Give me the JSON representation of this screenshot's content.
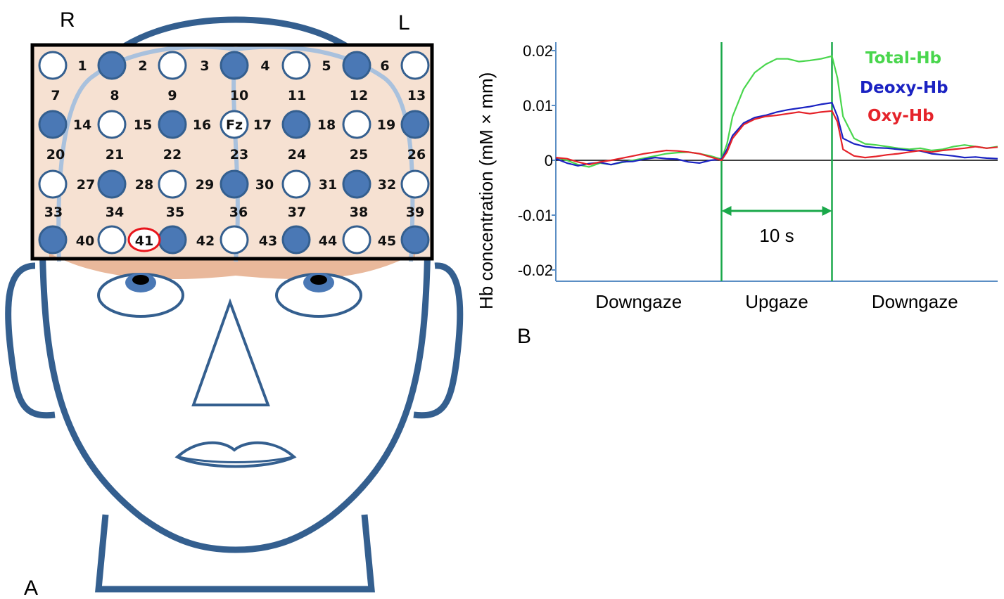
{
  "panels": {
    "a": "A",
    "b": "B"
  },
  "head": {
    "right_label": "R",
    "left_label": "L",
    "colors": {
      "outline": "#345f8f",
      "filled_optode": "#4a78b5",
      "probe_area": "#f6e1d2",
      "probe_lower": "#e9b89b",
      "highlight": "#e8141b"
    },
    "highlighted_channel": "41",
    "optode_grid": [
      [
        false,
        true,
        false,
        true,
        false,
        true,
        false
      ],
      [
        true,
        false,
        true,
        "Fz",
        true,
        false,
        true
      ],
      [
        false,
        true,
        false,
        true,
        false,
        true,
        false
      ],
      [
        true,
        false,
        true,
        false,
        true,
        false,
        true
      ]
    ],
    "channels": [
      "1",
      "2",
      "3",
      "4",
      "5",
      "6",
      "7",
      "8",
      "9",
      "10",
      "11",
      "12",
      "13",
      "14",
      "15",
      "16",
      "17",
      "18",
      "19",
      "20",
      "21",
      "22",
      "23",
      "24",
      "25",
      "26",
      "27",
      "28",
      "29",
      "30",
      "31",
      "32",
      "33",
      "34",
      "35",
      "36",
      "37",
      "38",
      "39",
      "40",
      "41",
      "42",
      "43",
      "44",
      "45"
    ]
  },
  "chart_data": {
    "type": "line",
    "title": "",
    "xlabel": "",
    "ylabel": "Hb concentration (mM × mm)",
    "ylim": [
      -0.02,
      0.02
    ],
    "yticks": [
      {
        "value": 0.02,
        "label": "0.02"
      },
      {
        "value": 0.01,
        "label": "0.01"
      },
      {
        "value": 0,
        "label": "0"
      },
      {
        "value": -0.01,
        "label": "-0.01"
      },
      {
        "value": -0.02,
        "label": "-0.02"
      }
    ],
    "xlim": [
      0,
      40
    ],
    "phases": [
      {
        "label": "Downgaze",
        "start": 0,
        "end": 15
      },
      {
        "label": "Upgaze",
        "start": 15,
        "end": 25
      },
      {
        "label": "Downgaze",
        "start": 25,
        "end": 40
      }
    ],
    "marker_lines_x": [
      15,
      25
    ],
    "duration_annotation": {
      "label": "10 s",
      "from": 15,
      "to": 25
    },
    "legend": [
      "Total-Hb",
      "Deoxy-Hb",
      "Oxy-Hb"
    ],
    "series": [
      {
        "name": "Total-Hb",
        "color": "#49d64d",
        "x": [
          0,
          1,
          2,
          3,
          4,
          5,
          6,
          7,
          8,
          9,
          10,
          11,
          12,
          13,
          14,
          15,
          15.5,
          16,
          17,
          18,
          19,
          20,
          21,
          22,
          23,
          24,
          25,
          25.5,
          26,
          27,
          28,
          29,
          30,
          31,
          32,
          33,
          34,
          35,
          36,
          37,
          38,
          39,
          40
        ],
        "y": [
          0.0005,
          0,
          -0.0008,
          -0.0012,
          -0.0005,
          -0.0008,
          -0.0004,
          0,
          0.0004,
          0.0008,
          0.0012,
          0.0014,
          0.0015,
          0.0012,
          0.0008,
          0.0002,
          0.003,
          0.008,
          0.013,
          0.016,
          0.0175,
          0.0185,
          0.0185,
          0.018,
          0.0182,
          0.0185,
          0.019,
          0.015,
          0.008,
          0.004,
          0.003,
          0.0028,
          0.0025,
          0.0022,
          0.002,
          0.0022,
          0.0018,
          0.002,
          0.0025,
          0.0028,
          0.0025,
          0.0022,
          0.0025
        ]
      },
      {
        "name": "Deoxy-Hb",
        "color": "#1a22c2",
        "x": [
          0,
          1,
          2,
          3,
          4,
          5,
          6,
          7,
          8,
          9,
          10,
          11,
          12,
          13,
          14,
          15,
          15.5,
          16,
          17,
          18,
          19,
          20,
          21,
          22,
          23,
          24,
          25,
          25.5,
          26,
          27,
          28,
          29,
          30,
          31,
          32,
          33,
          34,
          35,
          36,
          37,
          38,
          39,
          40
        ],
        "y": [
          0.0003,
          -0.0005,
          -0.001,
          -0.0006,
          -0.0004,
          -0.0008,
          -0.0003,
          -0.0002,
          0.0002,
          0.0005,
          0.0003,
          0.0002,
          -0.0003,
          -0.0005,
          0,
          0.0002,
          0.002,
          0.0045,
          0.0068,
          0.0078,
          0.0082,
          0.0088,
          0.0092,
          0.0095,
          0.0098,
          0.0102,
          0.0105,
          0.008,
          0.004,
          0.003,
          0.0025,
          0.0023,
          0.0022,
          0.002,
          0.0018,
          0.0017,
          0.0012,
          0.001,
          0.0008,
          0.0005,
          0.0006,
          0.0004,
          0.0003
        ]
      },
      {
        "name": "Oxy-Hb",
        "color": "#e5232a",
        "x": [
          0,
          1,
          2,
          3,
          4,
          5,
          6,
          7,
          8,
          9,
          10,
          11,
          12,
          13,
          14,
          15,
          15.5,
          16,
          17,
          18,
          19,
          20,
          21,
          22,
          23,
          24,
          25,
          25.5,
          26,
          27,
          28,
          29,
          30,
          31,
          32,
          33,
          34,
          35,
          36,
          37,
          38,
          39,
          40
        ],
        "y": [
          0.0005,
          0.0003,
          -0.0003,
          -0.0008,
          -0.0003,
          0,
          0.0004,
          0.0008,
          0.0012,
          0.0015,
          0.0018,
          0.0017,
          0.0015,
          0.0012,
          0.0006,
          0,
          0.0015,
          0.004,
          0.0065,
          0.0075,
          0.008,
          0.0082,
          0.0085,
          0.0088,
          0.0085,
          0.0088,
          0.009,
          0.007,
          0.002,
          0.0008,
          0.0005,
          0.0007,
          0.001,
          0.0012,
          0.0015,
          0.0018,
          0.0015,
          0.0018,
          0.002,
          0.0022,
          0.0025,
          0.0022,
          0.0024
        ]
      }
    ]
  }
}
